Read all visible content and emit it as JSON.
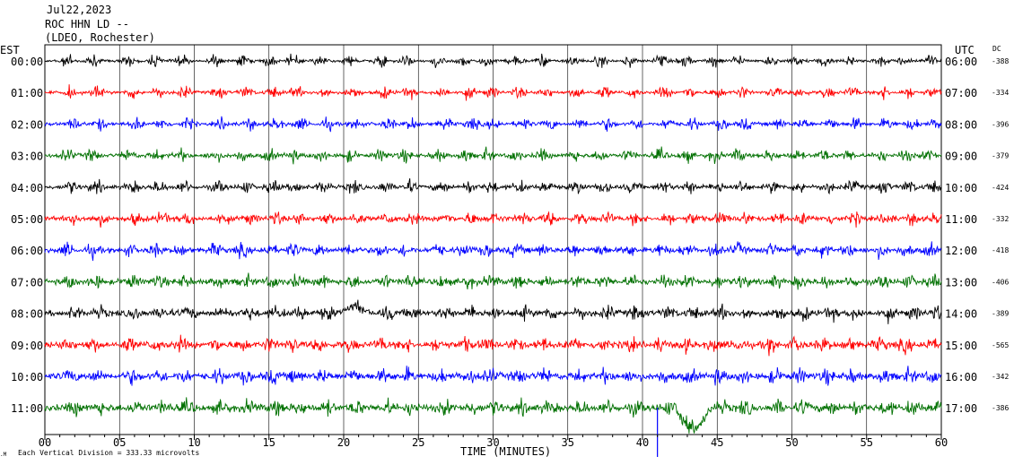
{
  "chart_data": {
    "type": "line",
    "title_lines": [
      "Jul22,2023",
      "ROC HHN LD --",
      "(LDEO, Rochester)"
    ],
    "left_axis_label": "EST",
    "right_axis_label": "UTC",
    "dc_label": "DC",
    "xlabel": "TIME (MINUTES)",
    "xlim": [
      0,
      60
    ],
    "x_ticks": [
      "00",
      "05",
      "10",
      "15",
      "20",
      "25",
      "30",
      "35",
      "40",
      "45",
      "50",
      "55",
      "60"
    ],
    "footer": "Each Vertical Division =  333.33 microvolts",
    "colors": [
      "#000000",
      "#ff0000",
      "#0000ff",
      "#007000"
    ],
    "rows": [
      {
        "est": "00:00",
        "utc": "06:00",
        "dc": "-388",
        "color": "#000000"
      },
      {
        "est": "01:00",
        "utc": "07:00",
        "dc": "-334",
        "color": "#ff0000"
      },
      {
        "est": "02:00",
        "utc": "08:00",
        "dc": "-396",
        "color": "#0000ff"
      },
      {
        "est": "03:00",
        "utc": "09:00",
        "dc": "-379",
        "color": "#007000"
      },
      {
        "est": "04:00",
        "utc": "10:00",
        "dc": "-424",
        "color": "#000000"
      },
      {
        "est": "05:00",
        "utc": "11:00",
        "dc": "-332",
        "color": "#ff0000"
      },
      {
        "est": "06:00",
        "utc": "12:00",
        "dc": "-418",
        "color": "#0000ff"
      },
      {
        "est": "07:00",
        "utc": "13:00",
        "dc": "-406",
        "color": "#007000"
      },
      {
        "est": "08:00",
        "utc": "14:00",
        "dc": "-389",
        "color": "#000000"
      },
      {
        "est": "09:00",
        "utc": "15:00",
        "dc": "-565",
        "color": "#ff0000"
      },
      {
        "est": "10:00",
        "utc": "16:00",
        "dc": "-342",
        "color": "#0000ff"
      },
      {
        "est": "11:00",
        "utc": "17:00",
        "dc": "-386",
        "color": "#007000"
      }
    ]
  }
}
